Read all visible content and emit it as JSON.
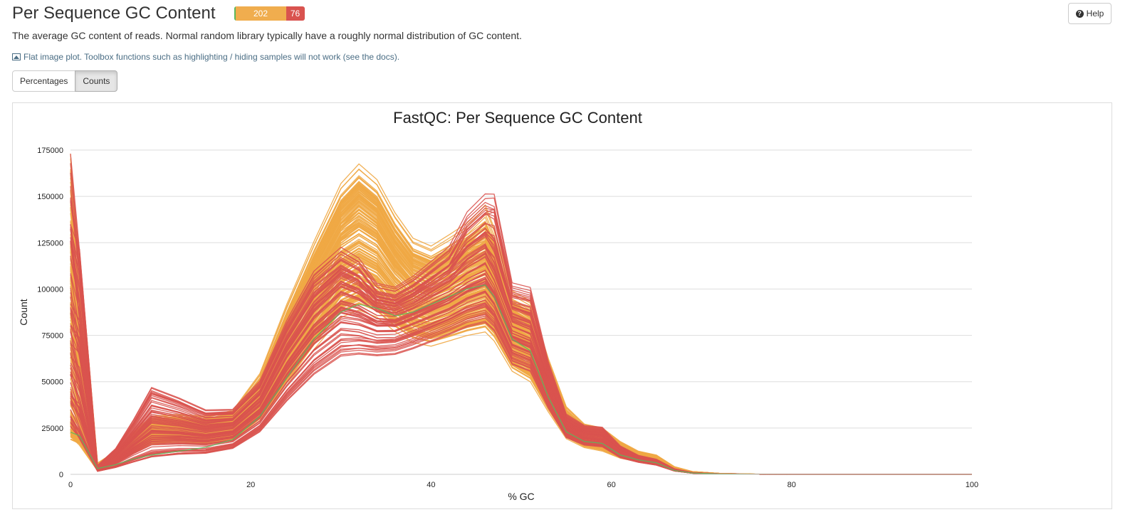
{
  "header": {
    "title": "Per Sequence GC Content",
    "badges": {
      "pass": "",
      "warn": "202",
      "fail": "76"
    }
  },
  "help_label": "Help",
  "description": "The average GC content of reads. Normal random library typically have a roughly normal distribution of GC content.",
  "flat_note": "Flat image plot. Toolbox functions such as highlighting / hiding samples will not work (see the docs).",
  "tabs": [
    {
      "label": "Percentages",
      "active": false
    },
    {
      "label": "Counts",
      "active": true
    }
  ],
  "colors": {
    "pass": "#5cb85c",
    "warn": "#f0ad4e",
    "fail": "#d9534f",
    "warn_line": "#f0a945",
    "fail_line": "#d9534f",
    "pass_line": "#5cb85c"
  },
  "chart_data": {
    "type": "line",
    "title": "FastQC: Per Sequence GC Content",
    "xlabel": "% GC",
    "ylabel": "Count",
    "xlim": [
      0,
      100
    ],
    "ylim": [
      0,
      175000
    ],
    "xticks": [
      0,
      20,
      40,
      60,
      80,
      100
    ],
    "yticks": [
      0,
      25000,
      50000,
      75000,
      100000,
      125000,
      150000,
      175000
    ],
    "grid": true,
    "x": [
      0,
      1,
      3,
      5,
      7,
      9,
      12,
      15,
      18,
      21,
      24,
      27,
      30,
      32,
      34,
      36,
      38,
      40,
      42,
      44,
      46,
      47,
      49,
      51,
      53,
      55,
      57,
      59,
      61,
      63,
      65,
      67,
      69,
      72,
      76,
      80,
      85,
      90,
      100
    ],
    "series_groups": [
      {
        "status": "warn",
        "count": 202,
        "profiles": [
          [
            160000,
            118000,
            6000,
            12000,
            22000,
            30000,
            31000,
            30000,
            33000,
            52000,
            88000,
            120000,
            150000,
            160000,
            152000,
            135000,
            122000,
            118000,
            124000,
            130000,
            140000,
            128000,
            95000,
            90000,
            60000,
            35000,
            26000,
            24000,
            17000,
            12000,
            10000,
            4000,
            1500,
            500,
            100,
            20,
            0,
            0,
            0
          ],
          [
            105000,
            70000,
            4000,
            10000,
            20000,
            28000,
            29000,
            28000,
            30000,
            48000,
            80000,
            112000,
            140000,
            150000,
            142000,
            125000,
            112000,
            108000,
            112000,
            118000,
            122000,
            112000,
            86000,
            80000,
            55000,
            32000,
            24000,
            22000,
            15000,
            11000,
            9000,
            3500,
            1200,
            400,
            80,
            10,
            0,
            0,
            0
          ],
          [
            60000,
            45000,
            3000,
            9000,
            17000,
            24000,
            25000,
            24000,
            26000,
            42000,
            70000,
            98000,
            124000,
            130000,
            124000,
            110000,
            100000,
            96000,
            100000,
            104000,
            108000,
            100000,
            76000,
            70000,
            48000,
            28000,
            21000,
            19000,
            13000,
            10000,
            8000,
            3000,
            1000,
            300,
            60,
            10,
            0,
            0,
            0
          ],
          [
            30000,
            22000,
            2500,
            7000,
            14000,
            20000,
            21000,
            20000,
            22000,
            36000,
            60000,
            84000,
            106000,
            112000,
            107000,
            96000,
            88000,
            85000,
            88000,
            92000,
            95000,
            88000,
            68000,
            62000,
            42000,
            24000,
            18000,
            16000,
            11000,
            8500,
            7000,
            2600,
            900,
            250,
            50,
            5,
            0,
            0,
            0
          ],
          [
            20000,
            16000,
            2000,
            6000,
            12000,
            17000,
            18000,
            17000,
            19000,
            30000,
            50000,
            70000,
            88000,
            92000,
            88000,
            80000,
            74000,
            72000,
            75000,
            78000,
            80000,
            75000,
            58000,
            52000,
            35000,
            20000,
            15000,
            13000,
            9000,
            7000,
            6000,
            2200,
            800,
            200,
            40,
            5,
            0,
            0,
            0
          ]
        ]
      },
      {
        "status": "fail",
        "count": 76,
        "profiles": [
          [
            172000,
            126000,
            5000,
            14000,
            30000,
            48000,
            42000,
            35000,
            35000,
            50000,
            82000,
            108000,
            120000,
            114000,
            100000,
            98000,
            104000,
            112000,
            120000,
            140000,
            150000,
            152000,
            102000,
            100000,
            60000,
            32000,
            26000,
            25000,
            15000,
            10000,
            8000,
            3000,
            1000,
            300,
            60,
            10,
            0,
            0,
            0
          ],
          [
            90000,
            70000,
            3000,
            10000,
            20000,
            30000,
            28000,
            25000,
            27000,
            40000,
            68000,
            90000,
            104000,
            100000,
            92000,
            90000,
            94000,
            100000,
            106000,
            114000,
            120000,
            110000,
            84000,
            80000,
            50000,
            27000,
            22000,
            21000,
            13000,
            9000,
            7000,
            2500,
            800,
            200,
            40,
            5,
            0,
            0,
            0
          ],
          [
            50000,
            38000,
            2500,
            7000,
            14000,
            20000,
            20000,
            19000,
            21000,
            32000,
            55000,
            74000,
            86000,
            84000,
            80000,
            80000,
            84000,
            88000,
            92000,
            98000,
            102000,
            95000,
            72000,
            68000,
            44000,
            24000,
            19000,
            18000,
            11000,
            8000,
            6000,
            2000,
            700,
            180,
            30,
            5,
            0,
            0,
            0
          ],
          [
            20000,
            15000,
            1500,
            3000,
            5000,
            7000,
            9000,
            10000,
            13000,
            22000,
            38000,
            52000,
            62000,
            64000,
            64000,
            65000,
            68000,
            72000,
            76000,
            80000,
            82000,
            78000,
            60000,
            56000,
            36000,
            20000,
            16000,
            15000,
            9000,
            6500,
            5000,
            1800,
            600,
            150,
            25,
            5,
            0,
            0,
            0
          ]
        ]
      },
      {
        "status": "pass",
        "count": 1,
        "profiles": [
          [
            25000,
            20000,
            3000,
            5000,
            8000,
            10000,
            12000,
            14000,
            18000,
            30000,
            50000,
            70000,
            84000,
            88000,
            86000,
            82000,
            84000,
            88000,
            92000,
            96000,
            98000,
            92000,
            70000,
            64000,
            40000,
            22000,
            17000,
            16000,
            10000,
            7500,
            6000,
            2000,
            700,
            200,
            30,
            5,
            0,
            0,
            0
          ]
        ]
      }
    ]
  }
}
